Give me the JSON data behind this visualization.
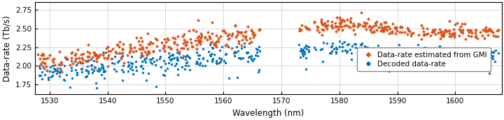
{
  "xlabel": "Wavelength (nm)",
  "ylabel": "Data-rate (Tb/s)",
  "xlim": [
    1527.5,
    1608
  ],
  "ylim": [
    1.62,
    2.85
  ],
  "yticks": [
    1.75,
    2.0,
    2.25,
    2.5,
    2.75
  ],
  "xticks": [
    1530,
    1540,
    1550,
    1560,
    1570,
    1580,
    1590,
    1600
  ],
  "color_gmi": "#D95319",
  "color_decoded": "#0072BD",
  "legend_gmi": "Data-rate estimated from GMI",
  "legend_decoded": "Decoded data-rate",
  "gap_start": 1567.0,
  "gap_end": 1572.5,
  "s1_start": 1528.0,
  "s1_end": 1566.5,
  "s2_start": 1573.0,
  "s2_end": 1607.5,
  "n1": 260,
  "n2": 230,
  "marker_size": 6,
  "figsize": [
    7.2,
    1.72
  ],
  "dpi": 100
}
